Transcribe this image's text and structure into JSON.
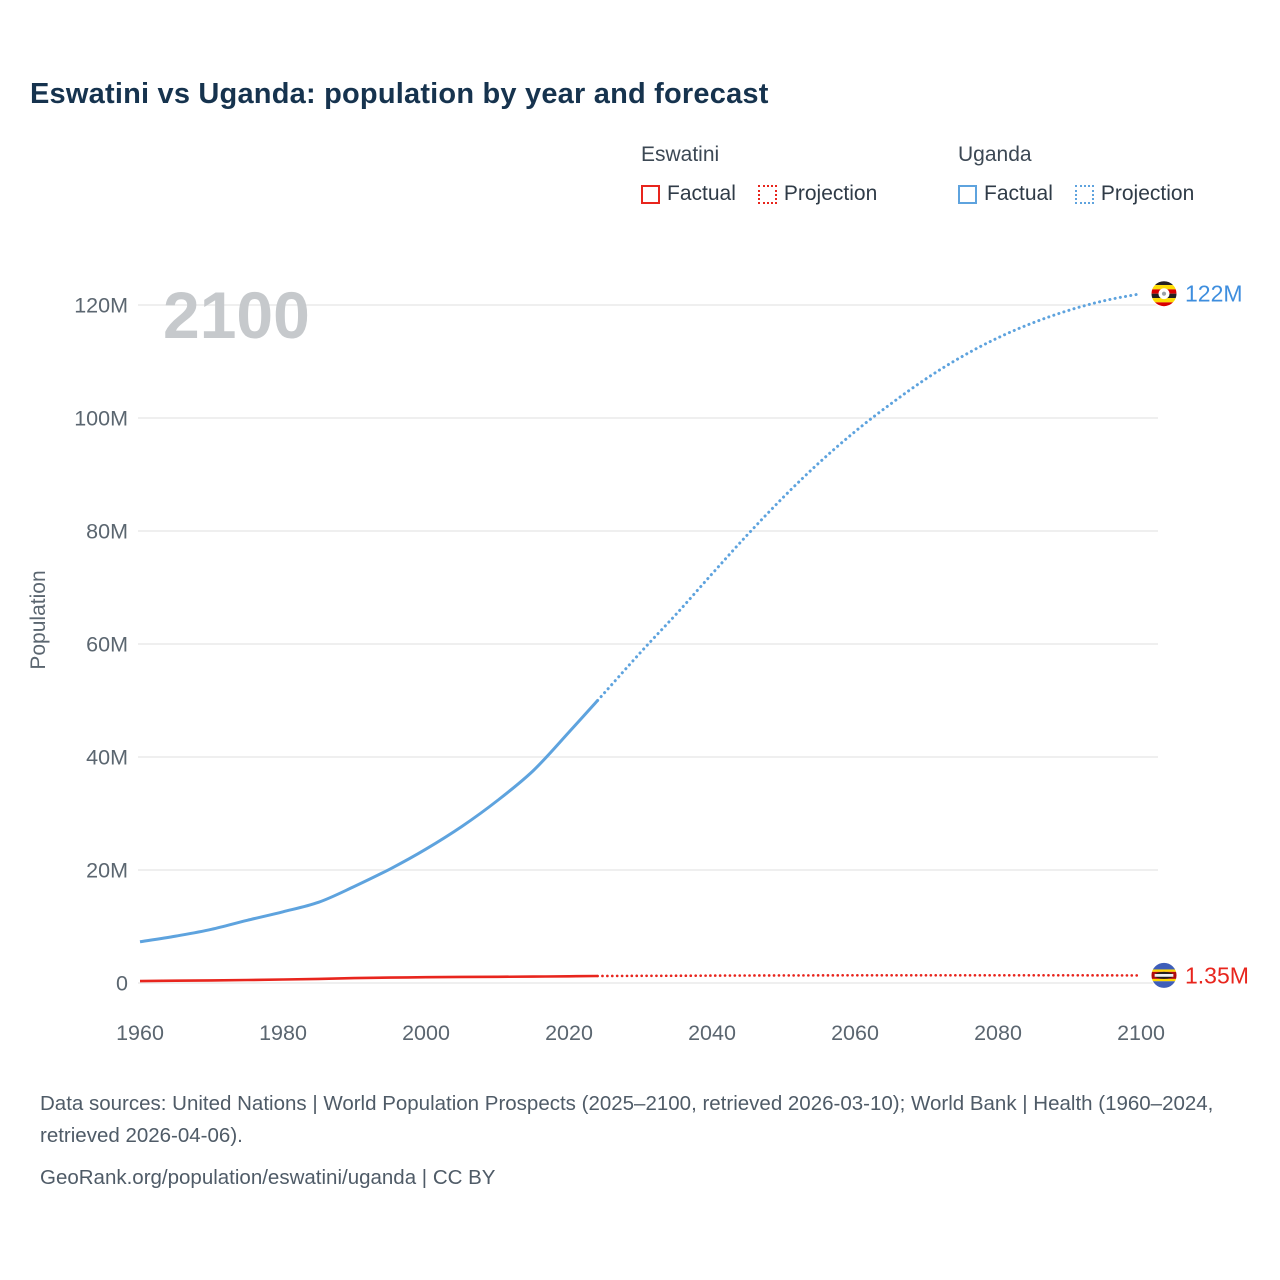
{
  "title": "Eswatini vs Uganda: population by year and forecast",
  "colors": {
    "title_text": "#16334e",
    "axis_text": "#5b6670",
    "grid": "#eaeaea",
    "watermark": "#c6c9cc",
    "footer_text": "#4f5b67",
    "eswatini": "#e8251d",
    "uganda": "#5ea3de",
    "uganda_value_label": "#3e8ede"
  },
  "legend": {
    "groups": [
      {
        "name": "Eswatini",
        "color": "#e8251d",
        "items": [
          {
            "label": "Factual",
            "style": "solid"
          },
          {
            "label": "Projection",
            "style": "dotted"
          }
        ]
      },
      {
        "name": "Uganda",
        "color": "#5ea3de",
        "items": [
          {
            "label": "Factual",
            "style": "solid"
          },
          {
            "label": "Projection",
            "style": "dotted"
          }
        ]
      }
    ]
  },
  "icons": {
    "uganda-flag-icon": {
      "stripes": [
        [
          "#231f20",
          1
        ],
        [
          "#fcdc04",
          1
        ],
        [
          "#d90000",
          1
        ],
        [
          "#231f20",
          1
        ],
        [
          "#fcdc04",
          1
        ],
        [
          "#d90000",
          1
        ]
      ],
      "center": "white-circle-crane"
    },
    "eswatini-flag-icon": {
      "stripes": [
        [
          "#3e5eb9",
          3
        ],
        [
          "#ffd900",
          1
        ],
        [
          "#b10c0c",
          3
        ],
        [
          "#ffd900",
          1
        ],
        [
          "#3e5eb9",
          3
        ]
      ],
      "center": "black-white-shield"
    }
  },
  "chart_data": {
    "type": "line",
    "title": "Eswatini vs Uganda: population by year and forecast",
    "xlabel": "",
    "ylabel": "Population",
    "unit": "millions",
    "watermark": "2100",
    "x_ticks": [
      1960,
      1980,
      2000,
      2020,
      2040,
      2060,
      2080,
      2100
    ],
    "y_ticks": [
      {
        "value": 0,
        "label": "0"
      },
      {
        "value": 20,
        "label": "20M"
      },
      {
        "value": 40,
        "label": "40M"
      },
      {
        "value": 60,
        "label": "60M"
      },
      {
        "value": 80,
        "label": "80M"
      },
      {
        "value": 100,
        "label": "100M"
      },
      {
        "value": 120,
        "label": "120M"
      }
    ],
    "xlim": [
      1960,
      2100
    ],
    "ylim": [
      0,
      120
    ],
    "grid": "horizontal",
    "legend_position": "top-right",
    "series": [
      {
        "name": "Uganda Factual",
        "country": "Uganda",
        "style": "solid",
        "color": "#5ea3de",
        "width": 3,
        "x": [
          1960,
          1965,
          1970,
          1975,
          1980,
          1985,
          1990,
          1995,
          2000,
          2005,
          2010,
          2015,
          2020,
          2024
        ],
        "y": [
          7.3,
          8.3,
          9.5,
          11.1,
          12.6,
          14.3,
          17.1,
          20.2,
          23.7,
          27.7,
          32.3,
          37.6,
          44.4,
          50.0
        ]
      },
      {
        "name": "Uganda Projection",
        "country": "Uganda",
        "style": "dotted",
        "color": "#5ea3de",
        "width": 3,
        "x": [
          2024,
          2030,
          2035,
          2040,
          2045,
          2050,
          2055,
          2060,
          2065,
          2070,
          2075,
          2080,
          2085,
          2090,
          2095,
          2100
        ],
        "y": [
          50.0,
          58.5,
          65.3,
          72.4,
          79.4,
          86.0,
          92.1,
          97.6,
          102.5,
          107.0,
          110.9,
          114.2,
          116.9,
          119.1,
          120.8,
          122.0
        ]
      },
      {
        "name": "Eswatini Factual",
        "country": "Eswatini",
        "style": "solid",
        "color": "#e8251d",
        "width": 2.6,
        "x": [
          1960,
          1965,
          1970,
          1975,
          1980,
          1985,
          1990,
          1995,
          2000,
          2005,
          2010,
          2015,
          2020,
          2024
        ],
        "y": [
          0.35,
          0.4,
          0.46,
          0.53,
          0.62,
          0.72,
          0.86,
          0.95,
          1.03,
          1.08,
          1.1,
          1.14,
          1.19,
          1.24
        ]
      },
      {
        "name": "Eswatini Projection",
        "country": "Eswatini",
        "style": "dotted",
        "color": "#e8251d",
        "width": 2.6,
        "x": [
          2024,
          2030,
          2040,
          2050,
          2060,
          2070,
          2080,
          2090,
          2100
        ],
        "y": [
          1.24,
          1.27,
          1.31,
          1.34,
          1.36,
          1.37,
          1.37,
          1.36,
          1.35
        ]
      }
    ],
    "end_labels": [
      {
        "series": "Uganda",
        "text": "122M",
        "color": "#3e8ede",
        "flag": "uganda-flag-icon",
        "x": 2100,
        "y": 122.0
      },
      {
        "series": "Eswatini",
        "text": "1.35M",
        "color": "#e8251d",
        "flag": "eswatini-flag-icon",
        "x": 2100,
        "y": 1.35
      }
    ]
  },
  "footer": {
    "line1": "Data sources: United Nations | World Population Prospects (2025–2100, retrieved 2026-03-10); World Bank | Health (1960–2024, retrieved 2026-04-06).",
    "line2": "GeoRank.org/population/eswatini/uganda | CC BY"
  }
}
